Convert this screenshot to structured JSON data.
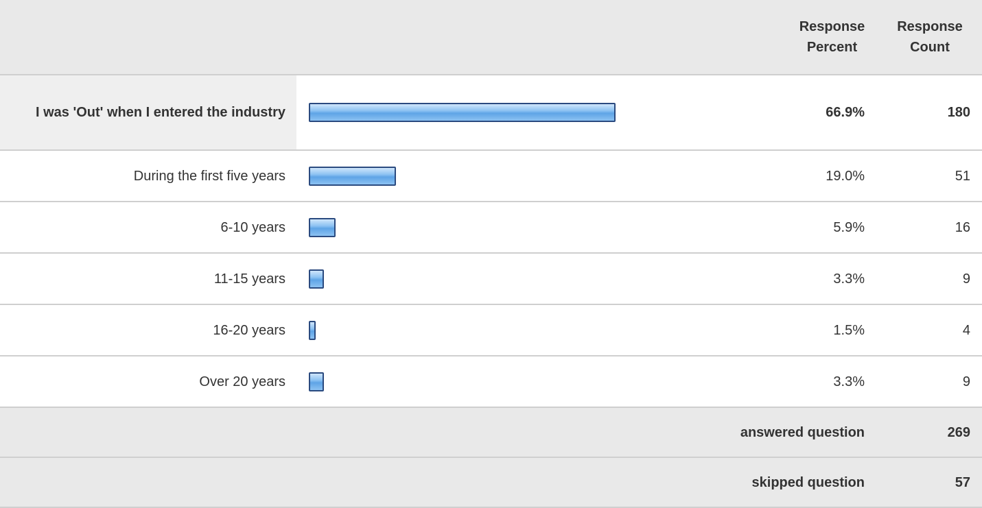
{
  "chart_data": {
    "type": "bar",
    "columns": [
      "Response Percent",
      "Response Count"
    ],
    "categories": [
      "I was 'Out' when I entered the industry",
      "During the first five years",
      "6-10 years",
      "11-15 years",
      "16-20 years",
      "Over 20 years"
    ],
    "values": [
      66.9,
      19.0,
      5.9,
      3.3,
      1.5,
      3.3
    ],
    "value_labels": [
      "66.9%",
      "19.0%",
      "5.9%",
      "3.3%",
      "1.5%",
      "3.3%"
    ],
    "counts": [
      180,
      51,
      16,
      9,
      4,
      9
    ],
    "summary": [
      {
        "label": "answered question",
        "count": 269
      },
      {
        "label": "skipped question",
        "count": 57
      }
    ]
  }
}
